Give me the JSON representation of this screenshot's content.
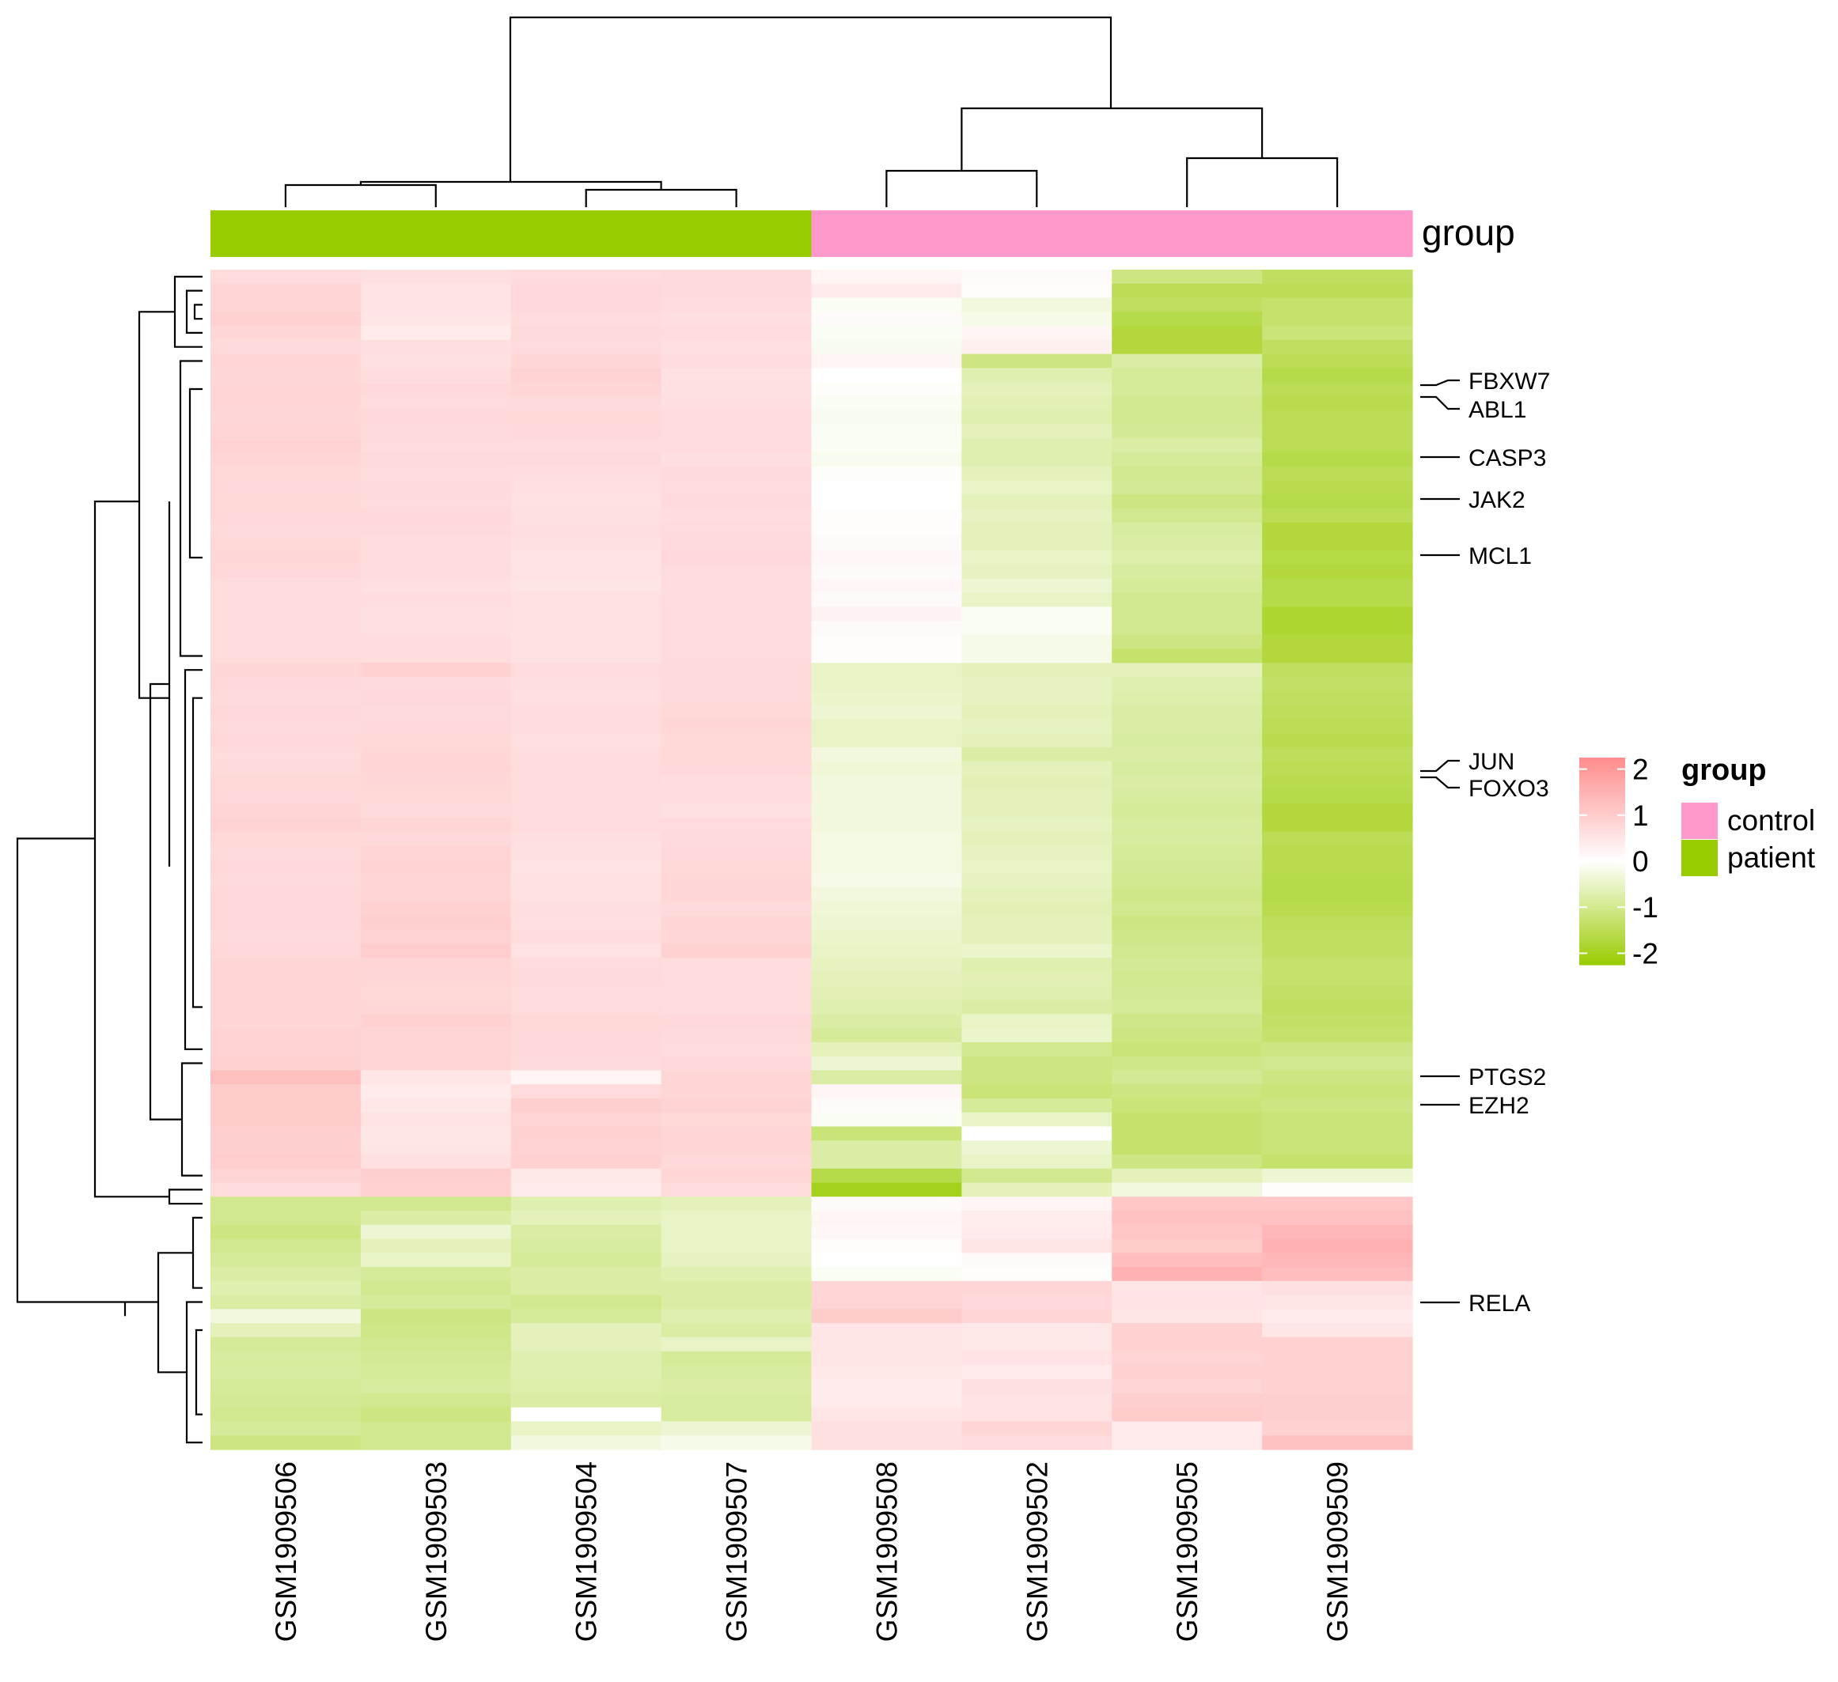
{
  "chart_data": {
    "type": "heatmap",
    "columns": [
      "GSM1909506",
      "GSM1909503",
      "GSM1909504",
      "GSM1909507",
      "GSM1909508",
      "GSM1909502",
      "GSM1909505",
      "GSM1909509"
    ],
    "column_groups": [
      "patient",
      "patient",
      "patient",
      "patient",
      "control",
      "control",
      "control",
      "control"
    ],
    "annotation_title": "group",
    "annotation_colors": {
      "control": "#FF99CC",
      "patient": "#99CC00"
    },
    "legend_group": {
      "title": "group",
      "entries": [
        "control",
        "patient"
      ]
    },
    "color_scale": {
      "low": "#99CC00",
      "mid": "#FFFFFF",
      "high": "#FF8C8C",
      "range": [
        -2.25,
        2.25
      ],
      "ticks": [
        2,
        1,
        0,
        -1,
        -2
      ]
    },
    "row_labels": [
      "FBXW7",
      "ABL1",
      "CASP3",
      "JAK2",
      "MCL1",
      "JUN",
      "FOXO3",
      "PTGS2",
      "EZH2",
      "RELA"
    ],
    "row_count": 84,
    "values": [
      [
        0.7,
        0.65,
        0.68,
        0.72,
        0.2,
        0.1,
        -1.1,
        -1.4
      ],
      [
        0.82,
        0.55,
        0.74,
        0.72,
        0.4,
        0.05,
        -1.5,
        -1.5
      ],
      [
        0.82,
        0.55,
        0.74,
        0.7,
        -0.1,
        -0.3,
        -1.4,
        -1.3
      ],
      [
        0.9,
        0.5,
        0.7,
        0.65,
        0.1,
        -0.2,
        -1.6,
        -1.3
      ],
      [
        0.78,
        0.4,
        0.72,
        0.68,
        -0.1,
        0.2,
        -1.7,
        -1.2
      ],
      [
        0.72,
        0.65,
        0.7,
        0.62,
        -0.15,
        0.3,
        -1.7,
        -1.4
      ],
      [
        0.8,
        0.6,
        0.78,
        0.68,
        0.2,
        -1.1,
        -0.8,
        -1.5
      ],
      [
        0.78,
        0.66,
        0.86,
        0.58,
        0.0,
        -0.7,
        -0.9,
        -1.6
      ],
      [
        0.82,
        0.74,
        0.8,
        0.6,
        -0.05,
        -0.6,
        -0.9,
        -1.5
      ],
      [
        0.82,
        0.7,
        0.72,
        0.64,
        -0.1,
        -0.65,
        -1.0,
        -1.55
      ],
      [
        0.78,
        0.75,
        0.76,
        0.7,
        -0.15,
        -0.7,
        -1.0,
        -1.5
      ],
      [
        0.8,
        0.72,
        0.74,
        0.66,
        -0.1,
        -0.6,
        -0.95,
        -1.5
      ],
      [
        0.86,
        0.7,
        0.7,
        0.7,
        -0.1,
        -0.7,
        -0.8,
        -1.5
      ],
      [
        0.82,
        0.72,
        0.72,
        0.64,
        -0.15,
        -0.7,
        -0.9,
        -1.6
      ],
      [
        0.76,
        0.68,
        0.66,
        0.72,
        -0.05,
        -0.6,
        -1.0,
        -1.5
      ],
      [
        0.74,
        0.72,
        0.62,
        0.7,
        0.0,
        -0.5,
        -0.95,
        -1.55
      ],
      [
        0.76,
        0.7,
        0.58,
        0.72,
        0.0,
        -0.6,
        -1.1,
        -1.6
      ],
      [
        0.74,
        0.74,
        0.6,
        0.66,
        0.05,
        -0.55,
        -1.0,
        -1.5
      ],
      [
        0.72,
        0.72,
        0.64,
        0.7,
        0.05,
        -0.6,
        -0.85,
        -1.7
      ],
      [
        0.76,
        0.66,
        0.6,
        0.72,
        0.1,
        -0.6,
        -0.8,
        -1.7
      ],
      [
        0.78,
        0.7,
        0.56,
        0.74,
        0.15,
        -0.5,
        -0.75,
        -1.65
      ],
      [
        0.74,
        0.66,
        0.54,
        0.7,
        0.1,
        -0.55,
        -0.85,
        -1.7
      ],
      [
        0.68,
        0.62,
        0.52,
        0.7,
        0.15,
        -0.4,
        -0.9,
        -1.6
      ],
      [
        0.7,
        0.66,
        0.58,
        0.68,
        0.1,
        -0.5,
        -1.0,
        -1.6
      ],
      [
        0.7,
        0.62,
        0.58,
        0.7,
        0.25,
        -0.1,
        -1.0,
        -1.8
      ],
      [
        0.7,
        0.62,
        0.58,
        0.7,
        0.1,
        -0.1,
        -1.0,
        -1.8
      ],
      [
        0.7,
        0.66,
        0.58,
        0.7,
        0.05,
        -0.2,
        -1.1,
        -1.7
      ],
      [
        0.7,
        0.66,
        0.58,
        0.7,
        0.05,
        -0.2,
        -1.3,
        -1.7
      ],
      [
        0.78,
        0.9,
        0.7,
        0.72,
        -0.5,
        -0.6,
        -0.6,
        -1.4
      ],
      [
        0.74,
        0.72,
        0.64,
        0.72,
        -0.5,
        -0.55,
        -0.7,
        -1.35
      ],
      [
        0.72,
        0.74,
        0.62,
        0.72,
        -0.45,
        -0.55,
        -0.75,
        -1.4
      ],
      [
        0.74,
        0.72,
        0.66,
        0.76,
        -0.4,
        -0.6,
        -0.8,
        -1.45
      ],
      [
        0.72,
        0.74,
        0.68,
        0.8,
        -0.5,
        -0.55,
        -0.8,
        -1.5
      ],
      [
        0.74,
        0.76,
        0.62,
        0.76,
        -0.5,
        -0.6,
        -0.85,
        -1.55
      ],
      [
        0.7,
        0.8,
        0.66,
        0.76,
        -0.3,
        -0.8,
        -0.8,
        -1.45
      ],
      [
        0.72,
        0.8,
        0.7,
        0.74,
        -0.35,
        -0.6,
        -0.85,
        -1.5
      ],
      [
        0.76,
        0.78,
        0.68,
        0.66,
        -0.3,
        -0.65,
        -0.8,
        -1.55
      ],
      [
        0.74,
        0.76,
        0.7,
        0.7,
        -0.3,
        -0.6,
        -0.85,
        -1.6
      ],
      [
        0.8,
        0.72,
        0.68,
        0.6,
        -0.3,
        -0.6,
        -0.9,
        -1.7
      ],
      [
        0.86,
        0.8,
        0.7,
        0.7,
        -0.3,
        -0.55,
        -0.85,
        -1.7
      ],
      [
        0.76,
        0.74,
        0.64,
        0.72,
        -0.25,
        -0.6,
        -0.85,
        -1.5
      ],
      [
        0.72,
        0.84,
        0.6,
        0.74,
        -0.25,
        -0.55,
        -0.9,
        -1.55
      ],
      [
        0.74,
        0.86,
        0.56,
        0.76,
        -0.25,
        -0.5,
        -0.95,
        -1.55
      ],
      [
        0.72,
        0.84,
        0.58,
        0.78,
        -0.2,
        -0.55,
        -1.0,
        -1.6
      ],
      [
        0.74,
        0.82,
        0.58,
        0.78,
        -0.3,
        -0.6,
        -1.05,
        -1.6
      ],
      [
        0.74,
        0.88,
        0.64,
        0.72,
        -0.35,
        -0.65,
        -1.0,
        -1.55
      ],
      [
        0.74,
        0.94,
        0.62,
        0.8,
        -0.4,
        -0.6,
        -1.1,
        -1.45
      ],
      [
        0.72,
        0.86,
        0.66,
        0.78,
        -0.45,
        -0.6,
        -1.05,
        -1.4
      ],
      [
        0.74,
        0.98,
        0.54,
        0.9,
        -0.5,
        -0.45,
        -1.0,
        -1.4
      ],
      [
        0.8,
        0.8,
        0.7,
        0.66,
        -0.55,
        -0.7,
        -0.95,
        -1.3
      ],
      [
        0.82,
        0.78,
        0.72,
        0.7,
        -0.6,
        -0.65,
        -1.0,
        -1.3
      ],
      [
        0.84,
        0.76,
        0.7,
        0.68,
        -0.65,
        -0.7,
        -0.95,
        -1.35
      ],
      [
        0.82,
        0.78,
        0.7,
        0.66,
        -0.7,
        -0.8,
        -0.9,
        -1.4
      ],
      [
        0.8,
        0.9,
        0.76,
        0.74,
        -0.8,
        -0.5,
        -1.05,
        -1.35
      ],
      [
        0.86,
        0.84,
        0.74,
        0.72,
        -0.9,
        -0.45,
        -1.1,
        -1.3
      ],
      [
        0.86,
        0.84,
        0.74,
        0.68,
        -0.6,
        -1.0,
        -1.2,
        -1.1
      ],
      [
        0.88,
        0.84,
        0.72,
        0.74,
        -0.4,
        -1.1,
        -1.05,
        -1.0
      ],
      [
        1.25,
        0.5,
        0.2,
        0.8,
        -0.8,
        -1.1,
        -0.95,
        -1.1
      ],
      [
        1.0,
        0.4,
        0.7,
        0.8,
        0.2,
        -1.2,
        -1.1,
        -1.2
      ],
      [
        1.0,
        0.46,
        0.94,
        0.86,
        0.1,
        -0.9,
        -1.2,
        -1.1
      ],
      [
        1.0,
        0.55,
        0.84,
        0.76,
        -0.1,
        -0.5,
        -1.3,
        -1.2
      ],
      [
        0.96,
        0.48,
        0.88,
        0.8,
        -1.2,
        0.0,
        -1.3,
        -1.2
      ],
      [
        0.95,
        0.52,
        0.86,
        0.8,
        -0.8,
        -0.4,
        -1.3,
        -1.2
      ],
      [
        0.98,
        0.6,
        0.9,
        0.74,
        -0.8,
        -0.5,
        -1.1,
        -1.3
      ],
      [
        0.85,
        0.95,
        0.45,
        0.8,
        -1.6,
        -1.0,
        -0.6,
        -0.4
      ],
      [
        0.7,
        0.9,
        0.4,
        0.7,
        -2.0,
        -0.6,
        -0.3,
        0.05
      ],
      [
        -1.0,
        -1.0,
        -0.7,
        -0.6,
        0.1,
        0.2,
        1.1,
        1.1
      ],
      [
        -1.0,
        -0.8,
        -0.6,
        -0.5,
        0.2,
        0.35,
        1.2,
        1.2
      ],
      [
        -1.1,
        -0.4,
        -0.8,
        -0.5,
        0.15,
        0.4,
        1.1,
        1.4
      ],
      [
        -1.0,
        -0.6,
        -0.85,
        -0.5,
        0.05,
        0.5,
        1.0,
        1.5
      ],
      [
        -0.9,
        -0.5,
        -0.9,
        -0.55,
        0.0,
        0.1,
        1.3,
        1.4
      ],
      [
        -0.8,
        -0.9,
        -0.8,
        -0.7,
        -0.1,
        0.05,
        1.5,
        1.3
      ],
      [
        -0.7,
        -1.0,
        -0.8,
        -0.8,
        0.8,
        0.8,
        0.5,
        0.6
      ],
      [
        -0.8,
        -0.9,
        -1.0,
        -0.8,
        0.85,
        0.75,
        0.55,
        0.5
      ],
      [
        -0.3,
        -1.1,
        -0.9,
        -0.7,
        1.0,
        0.8,
        0.5,
        0.4
      ],
      [
        -0.6,
        -1.05,
        -0.6,
        -0.8,
        0.5,
        0.45,
        0.9,
        0.5
      ],
      [
        -0.9,
        -1.0,
        -0.6,
        -0.5,
        0.5,
        0.45,
        0.9,
        0.9
      ],
      [
        -0.85,
        -0.95,
        -0.7,
        -0.9,
        0.5,
        0.55,
        0.85,
        0.9
      ],
      [
        -0.85,
        -0.9,
        -0.7,
        -0.85,
        0.45,
        0.4,
        0.9,
        0.9
      ],
      [
        -0.9,
        -0.85,
        -0.75,
        -0.8,
        0.4,
        0.6,
        0.8,
        0.9
      ],
      [
        -0.95,
        -1.0,
        -0.8,
        -0.85,
        0.4,
        0.55,
        0.95,
        0.95
      ],
      [
        -1.0,
        -1.1,
        0.0,
        -0.85,
        0.5,
        0.55,
        1.0,
        0.95
      ],
      [
        -0.9,
        -1.0,
        -0.5,
        -0.4,
        0.6,
        0.8,
        0.4,
        0.9
      ],
      [
        -1.1,
        -1.0,
        -0.3,
        -0.2,
        0.6,
        0.7,
        0.4,
        1.2
      ]
    ]
  }
}
